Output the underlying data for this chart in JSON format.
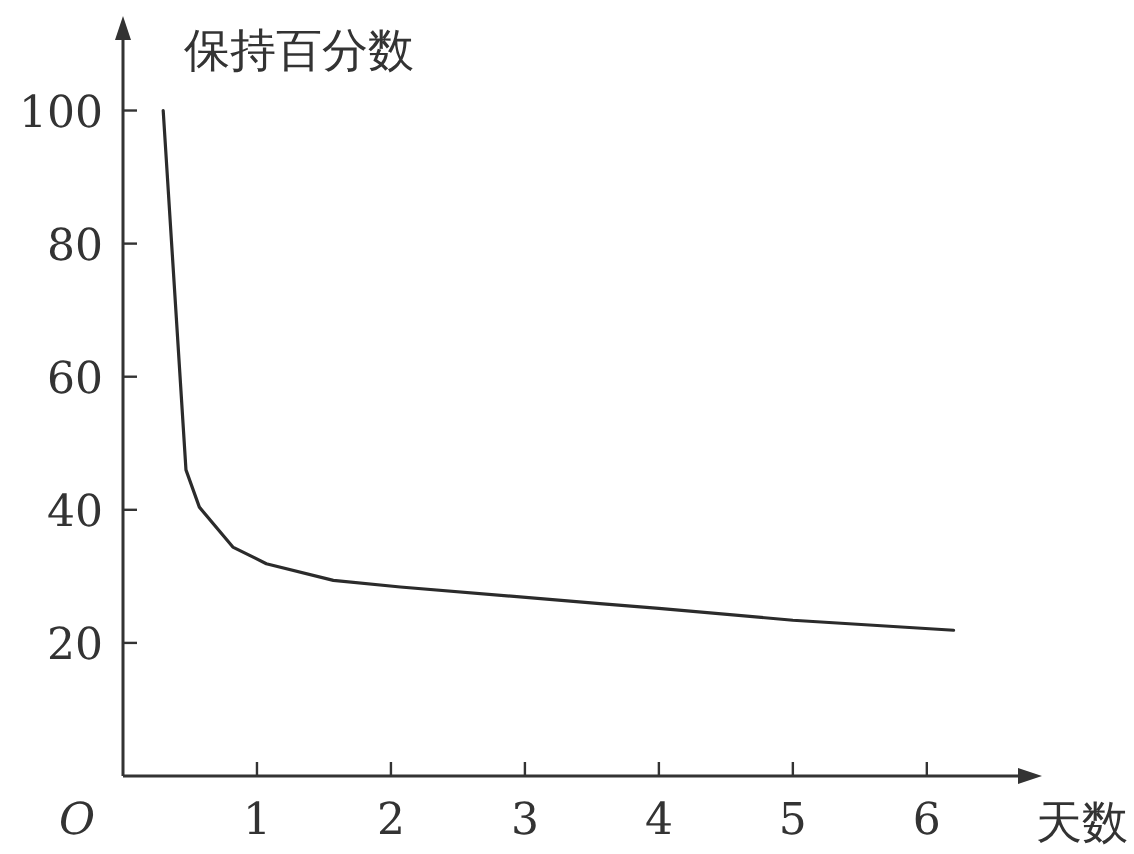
{
  "chart_data": {
    "type": "line",
    "ylabel": "保持百分数",
    "xlabel": "天数",
    "annotations": [
      "O"
    ],
    "xlim": [
      0,
      6.8
    ],
    "ylim": [
      0,
      113
    ],
    "xticks": [
      1,
      2,
      3,
      4,
      5,
      6
    ],
    "yticks": [
      20,
      40,
      60,
      80,
      100
    ],
    "series": [
      {
        "color": "#2b2b2b",
        "x": [
          0.3,
          0.47,
          0.57,
          0.82,
          1.07,
          1.57,
          2.07,
          3.56,
          4.0,
          5.0,
          6.2
        ],
        "values": [
          100,
          46,
          40.4,
          34.4,
          31.9,
          29.4,
          28.4,
          25.9,
          25.2,
          23.4,
          21.9
        ]
      }
    ],
    "grid": false,
    "marker": "none",
    "line_style": "solid"
  }
}
